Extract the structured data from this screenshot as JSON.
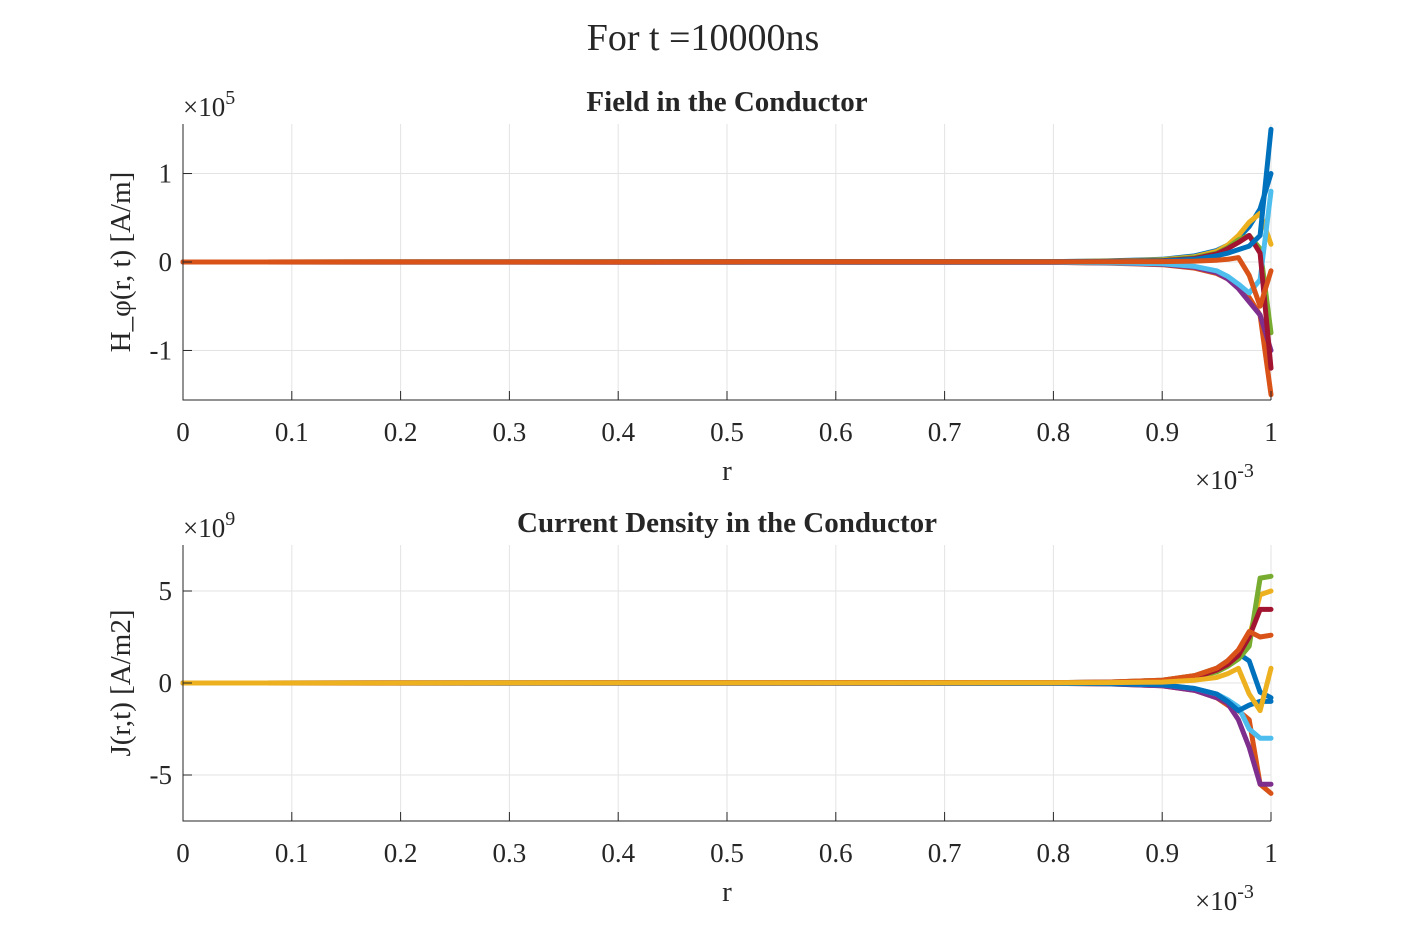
{
  "figure": {
    "suptitle": "For t =10000ns",
    "colors": [
      "#0072BD",
      "#D95319",
      "#EDB120",
      "#7E2F8E",
      "#77AC30",
      "#4DBEEE",
      "#A2142F"
    ]
  },
  "chart_data": [
    {
      "type": "line",
      "title": "Field in the Conductor",
      "xlabel": "r",
      "ylabel": "H_φ(r, t) [A/m]",
      "x_exponent_label": "×10-3",
      "y_exponent_label": "×105",
      "x_tick_labels": [
        "0",
        "0.1",
        "0.2",
        "0.3",
        "0.4",
        "0.5",
        "0.6",
        "0.7",
        "0.8",
        "0.9",
        "1"
      ],
      "y_tick_labels": [
        "-1",
        "0",
        "1"
      ],
      "xlim": [
        0,
        0.001
      ],
      "ylim": [
        -156000,
        156000
      ],
      "x_ticks": [
        0,
        0.0001,
        0.0002,
        0.0003,
        0.0004,
        0.0005,
        0.0006,
        0.0007,
        0.0008,
        0.0009,
        0.001
      ],
      "y_ticks": [
        -100000,
        0,
        100000
      ],
      "grid": true,
      "x": [
        0,
        0.0008,
        0.00085,
        0.0009,
        0.00093,
        0.00095,
        0.00096,
        0.00097,
        0.00098,
        0.00099,
        0.001
      ],
      "series": [
        {
          "values": [
            0,
            500,
            1200,
            3000,
            7000,
            13000,
            19000,
            27000,
            40000,
            60000,
            100000
          ]
        },
        {
          "values": [
            0,
            -500,
            -1200,
            -3000,
            -7000,
            -13000,
            -19000,
            -27000,
            -40000,
            -60000,
            -150000
          ]
        },
        {
          "values": [
            0,
            400,
            1000,
            2500,
            6000,
            12000,
            19000,
            30000,
            45000,
            55000,
            20000
          ]
        },
        {
          "values": [
            0,
            -400,
            -1000,
            -2500,
            -6000,
            -12000,
            -19000,
            -30000,
            -45000,
            -60000,
            -100000
          ]
        },
        {
          "values": [
            0,
            300,
            800,
            2000,
            5000,
            10000,
            16000,
            25000,
            30000,
            15000,
            -80000
          ]
        },
        {
          "values": [
            0,
            -300,
            -800,
            -2000,
            -5000,
            -10000,
            -16000,
            -25000,
            -35000,
            -20000,
            80000
          ]
        },
        {
          "values": [
            0,
            300,
            700,
            1500,
            4000,
            9000,
            15000,
            22000,
            30000,
            10000,
            -120000
          ]
        },
        {
          "values": [
            0,
            200,
            500,
            1000,
            3000,
            7000,
            10000,
            14000,
            18000,
            30000,
            150000
          ]
        },
        {
          "values": [
            0,
            100,
            300,
            500,
            1000,
            2000,
            3000,
            5000,
            -15000,
            -50000,
            -10000
          ]
        }
      ]
    },
    {
      "type": "line",
      "title": "Current Density in the Conductor",
      "xlabel": "r",
      "ylabel": "J(r,t) [A/m2]",
      "x_exponent_label": "×10-3",
      "y_exponent_label": "×109",
      "x_tick_labels": [
        "0",
        "0.1",
        "0.2",
        "0.3",
        "0.4",
        "0.5",
        "0.6",
        "0.7",
        "0.8",
        "0.9",
        "1"
      ],
      "y_tick_labels": [
        "-5",
        "0",
        "5"
      ],
      "xlim": [
        0,
        0.001
      ],
      "ylim": [
        -7500000000.0,
        7500000000.0
      ],
      "x_ticks": [
        0,
        0.0001,
        0.0002,
        0.0003,
        0.0004,
        0.0005,
        0.0006,
        0.0007,
        0.0008,
        0.0009,
        0.001
      ],
      "y_ticks": [
        -5000000000.0,
        0,
        5000000000.0
      ],
      "grid": true,
      "x": [
        0,
        0.0008,
        0.00085,
        0.0009,
        0.00093,
        0.00095,
        0.00096,
        0.00097,
        0.00098,
        0.00099,
        0.001
      ],
      "series": [
        {
          "values": [
            0,
            20000000.0,
            50000000.0,
            150000000.0,
            400000000.0,
            800000000.0,
            1200000000.0,
            1600000000.0,
            1200000000.0,
            -500000000.0,
            -800000000.0
          ]
        },
        {
          "values": [
            0,
            -20000000.0,
            -50000000.0,
            -150000000.0,
            -400000000.0,
            -800000000.0,
            -1200000000.0,
            -1500000000.0,
            -2000000000.0,
            -5500000000.0,
            -6000000000.0
          ]
        },
        {
          "values": [
            0,
            20000000.0,
            50000000.0,
            150000000.0,
            400000000.0,
            800000000.0,
            1100000000.0,
            1400000000.0,
            2500000000.0,
            4800000000.0,
            5000000000.0
          ]
        },
        {
          "values": [
            0,
            -20000000.0,
            -50000000.0,
            -150000000.0,
            -400000000.0,
            -800000000.0,
            -1100000000.0,
            -2000000000.0,
            -3500000000.0,
            -5500000000.0,
            -5500000000.0
          ]
        },
        {
          "values": [
            0,
            10000000.0,
            30000000.0,
            100000000.0,
            300000000.0,
            600000000.0,
            900000000.0,
            1300000000.0,
            2000000000.0,
            5700000000.0,
            5800000000.0
          ]
        },
        {
          "values": [
            0,
            -10000000.0,
            -30000000.0,
            -100000000.0,
            -300000000.0,
            -600000000.0,
            -900000000.0,
            -1300000000.0,
            -2500000000.0,
            -3000000000.0,
            -3000000000.0
          ]
        },
        {
          "values": [
            0,
            20000000.0,
            40000000.0,
            100000000.0,
            300000000.0,
            700000000.0,
            1000000000.0,
            1500000000.0,
            2500000000.0,
            4000000000.0,
            4000000000.0
          ]
        },
        {
          "values": [
            0,
            -10000000.0,
            -30000000.0,
            -100000000.0,
            -300000000.0,
            -600000000.0,
            -1000000000.0,
            -1500000000.0,
            -1200000000.0,
            -1000000000.0,
            -1000000000.0
          ]
        },
        {
          "values": [
            0,
            20000000.0,
            50000000.0,
            150000000.0,
            400000000.0,
            800000000.0,
            1200000000.0,
            1800000000.0,
            2800000000.0,
            2500000000.0,
            2600000000.0
          ]
        },
        {
          "values": [
            0,
            10000000.0,
            20000000.0,
            50000000.0,
            150000000.0,
            300000000.0,
            500000000.0,
            800000000.0,
            -600000000.0,
            -1500000000.0,
            800000000.0
          ]
        }
      ]
    }
  ]
}
